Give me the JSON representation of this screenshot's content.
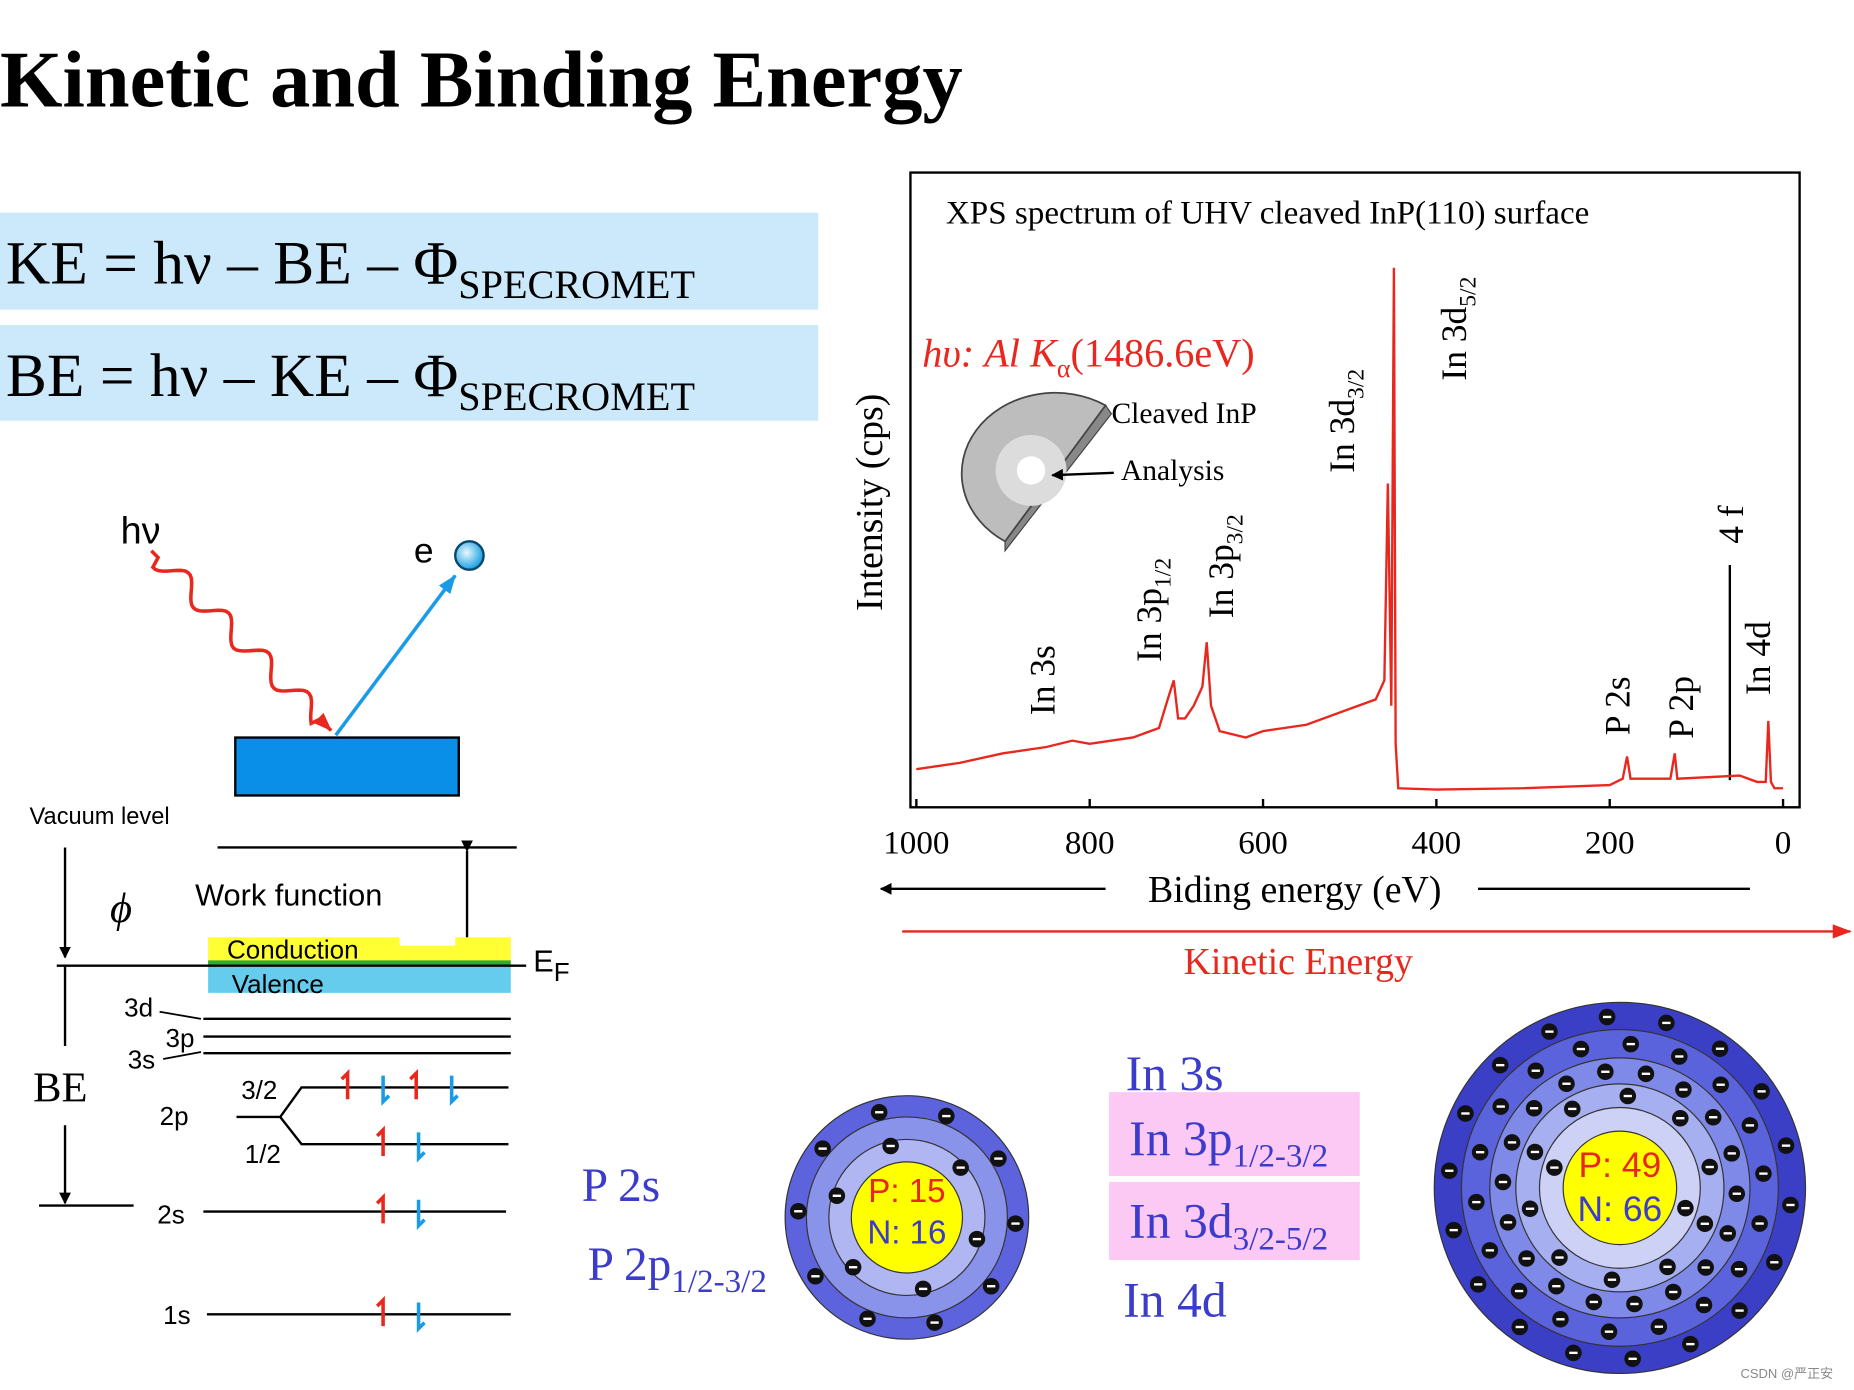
{
  "title": "Kinetic and Binding Energy",
  "equations": [
    {
      "main": "KE = hν – BE – Φ",
      "sub": "SPECROMET"
    },
    {
      "main": "BE = hν – KE – Φ",
      "sub": "SPECROMET"
    }
  ],
  "photoemission": {
    "photon": "hν",
    "electron": "e"
  },
  "energy_levels": {
    "vacuum": "Vacuum level",
    "phi": "ϕ",
    "work_function": "Work function",
    "conduction": "Conduction",
    "valence": "Valence",
    "fermi": {
      "main": "E",
      "sub": "F"
    },
    "be": "BE",
    "levels": [
      "3d",
      "3p",
      "3s",
      "2p",
      "3/2",
      "1/2",
      "2s",
      "1s"
    ]
  },
  "phosphorus": {
    "orbitals": [
      {
        "main": "P 2s"
      },
      {
        "main": "P 2p",
        "sub": "1/2-3/2"
      }
    ],
    "protons": "P: 15",
    "neutrons": "N: 16"
  },
  "indium": {
    "orbitals": [
      {
        "main": "In 3s"
      },
      {
        "main": "In 3p",
        "sub": "1/2-3/2"
      },
      {
        "main": "In 3d",
        "sub": "3/2-5/2"
      },
      {
        "main": "In 4d"
      }
    ],
    "protons": "P: 49",
    "neutrons": "N: 66"
  },
  "chart_data": {
    "type": "line",
    "title": "XPS spectrum of UHV cleaved InP(110) surface",
    "source": {
      "main": "hυ: Al K",
      "sub": "α",
      "tail": "(1486.6eV)"
    },
    "sample": {
      "surface": "Cleaved InP",
      "spot": "Analysis"
    },
    "x_label": "Biding energy (eV)",
    "y_label": "Intensity (cps)",
    "secondary_axis_label": "Kinetic Energy",
    "x": [
      1000,
      950,
      900,
      850,
      820,
      800,
      750,
      720,
      710,
      703,
      698,
      690,
      680,
      670,
      665,
      660,
      650,
      620,
      600,
      550,
      500,
      470,
      460,
      456,
      452,
      449,
      447,
      444,
      400,
      300,
      200,
      185,
      180,
      176,
      130,
      125,
      122,
      50,
      30,
      20,
      17,
      14,
      10,
      0
    ],
    "series": [
      {
        "color": "#e8281e",
        "values": [
          6,
          7,
          8.5,
          9.5,
          10.5,
          10,
          11,
          12.5,
          17,
          20,
          14,
          14,
          16,
          19,
          26,
          16,
          12,
          11,
          12,
          13,
          15.5,
          17,
          20,
          51,
          16,
          85,
          10,
          3,
          2.8,
          3,
          3.5,
          4.5,
          8,
          4.5,
          4.5,
          8.5,
          4.5,
          5,
          4,
          4,
          13.6,
          4,
          3,
          3
        ]
      }
    ],
    "xlim": [
      1000,
      0
    ],
    "xticks": [
      1000,
      800,
      600,
      400,
      200,
      0
    ],
    "ylim": [
      0,
      100
    ],
    "peak_labels": [
      {
        "main": "In 3s"
      },
      {
        "main": "In 3p",
        "sub": "1/2"
      },
      {
        "main": "In 3p",
        "sub": "3/2"
      },
      {
        "main": "In 3d",
        "sub": "3/2"
      },
      {
        "main": "In 3d",
        "sub": "5/2"
      },
      {
        "main": "P 2s"
      },
      {
        "main": "P 2p"
      },
      {
        "main": "4 f"
      },
      {
        "main": "In 4d"
      }
    ]
  },
  "watermark": "CSDN @严正安"
}
